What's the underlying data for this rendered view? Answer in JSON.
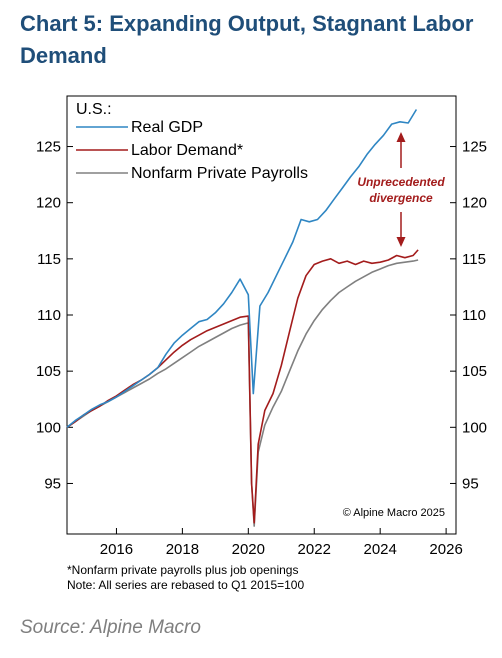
{
  "title": "Chart 5: Expanding Output, Stagnant Labor Demand",
  "notes": [
    "*Nonfarm private payrolls plus job openings",
    "Note: All series are rebased to Q1 2015=100"
  ],
  "source": "Source: Alpine Macro",
  "chart_data": {
    "type": "line",
    "region_label": "U.S.:",
    "copyright": "© Alpine Macro 2025",
    "annotation": {
      "text_lines": [
        "Unprecedented",
        "divergence"
      ],
      "color": "#a31c1c"
    },
    "xlim": [
      2014.5,
      2026.3
    ],
    "ylim": [
      90.5,
      129.5
    ],
    "x_ticks": [
      2016,
      2018,
      2020,
      2022,
      2024,
      2026
    ],
    "y_ticks": [
      95,
      100,
      105,
      110,
      115,
      120,
      125
    ],
    "legend_position": "top-left",
    "series": [
      {
        "name": "Real GDP",
        "color": "#2f86c3",
        "points": [
          [
            2014.5,
            100
          ],
          [
            2014.75,
            100.6
          ],
          [
            2015.0,
            101.1
          ],
          [
            2015.25,
            101.6
          ],
          [
            2015.5,
            102.0
          ],
          [
            2015.75,
            102.3
          ],
          [
            2016.0,
            102.7
          ],
          [
            2016.25,
            103.2
          ],
          [
            2016.5,
            103.7
          ],
          [
            2016.75,
            104.2
          ],
          [
            2017.0,
            104.7
          ],
          [
            2017.25,
            105.3
          ],
          [
            2017.5,
            106.5
          ],
          [
            2017.75,
            107.5
          ],
          [
            2018.0,
            108.2
          ],
          [
            2018.25,
            108.8
          ],
          [
            2018.5,
            109.4
          ],
          [
            2018.75,
            109.6
          ],
          [
            2019.0,
            110.2
          ],
          [
            2019.25,
            111.0
          ],
          [
            2019.5,
            112.0
          ],
          [
            2019.75,
            113.2
          ],
          [
            2020.0,
            111.8
          ],
          [
            2020.15,
            103.0
          ],
          [
            2020.35,
            110.8
          ],
          [
            2020.6,
            112.0
          ],
          [
            2020.85,
            113.5
          ],
          [
            2021.1,
            115.0
          ],
          [
            2021.35,
            116.5
          ],
          [
            2021.6,
            118.5
          ],
          [
            2021.85,
            118.3
          ],
          [
            2022.1,
            118.5
          ],
          [
            2022.35,
            119.3
          ],
          [
            2022.6,
            120.3
          ],
          [
            2022.85,
            121.3
          ],
          [
            2023.1,
            122.3
          ],
          [
            2023.35,
            123.2
          ],
          [
            2023.6,
            124.3
          ],
          [
            2023.85,
            125.2
          ],
          [
            2024.1,
            126.0
          ],
          [
            2024.35,
            127.0
          ],
          [
            2024.6,
            127.2
          ],
          [
            2024.85,
            127.1
          ],
          [
            2025.1,
            128.3
          ]
        ]
      },
      {
        "name": "Labor Demand*",
        "color": "#a31c1c",
        "points": [
          [
            2014.5,
            100
          ],
          [
            2014.75,
            100.5
          ],
          [
            2015.0,
            101.1
          ],
          [
            2015.25,
            101.5
          ],
          [
            2015.5,
            101.9
          ],
          [
            2015.75,
            102.4
          ],
          [
            2016.0,
            102.8
          ],
          [
            2016.25,
            103.3
          ],
          [
            2016.5,
            103.8
          ],
          [
            2016.75,
            104.2
          ],
          [
            2017.0,
            104.7
          ],
          [
            2017.25,
            105.3
          ],
          [
            2017.5,
            106.0
          ],
          [
            2017.75,
            106.7
          ],
          [
            2018.0,
            107.3
          ],
          [
            2018.25,
            107.8
          ],
          [
            2018.5,
            108.2
          ],
          [
            2018.75,
            108.6
          ],
          [
            2019.0,
            108.9
          ],
          [
            2019.25,
            109.2
          ],
          [
            2019.5,
            109.5
          ],
          [
            2019.75,
            109.8
          ],
          [
            2020.0,
            109.9
          ],
          [
            2020.1,
            95.0
          ],
          [
            2020.18,
            91.5
          ],
          [
            2020.3,
            98.5
          ],
          [
            2020.5,
            101.5
          ],
          [
            2020.75,
            103.0
          ],
          [
            2021.0,
            105.5
          ],
          [
            2021.25,
            108.5
          ],
          [
            2021.5,
            111.5
          ],
          [
            2021.75,
            113.5
          ],
          [
            2022.0,
            114.5
          ],
          [
            2022.25,
            114.8
          ],
          [
            2022.5,
            115.0
          ],
          [
            2022.75,
            114.6
          ],
          [
            2023.0,
            114.8
          ],
          [
            2023.25,
            114.5
          ],
          [
            2023.5,
            114.8
          ],
          [
            2023.75,
            114.6
          ],
          [
            2024.0,
            114.7
          ],
          [
            2024.25,
            114.9
          ],
          [
            2024.5,
            115.3
          ],
          [
            2024.75,
            115.1
          ],
          [
            2025.0,
            115.3
          ],
          [
            2025.15,
            115.8
          ]
        ]
      },
      {
        "name": "Nonfarm Private Payrolls",
        "color": "#808080",
        "points": [
          [
            2014.5,
            100
          ],
          [
            2014.75,
            100.5
          ],
          [
            2015.0,
            101.0
          ],
          [
            2015.25,
            101.5
          ],
          [
            2015.5,
            101.9
          ],
          [
            2015.75,
            102.3
          ],
          [
            2016.0,
            102.7
          ],
          [
            2016.25,
            103.1
          ],
          [
            2016.5,
            103.5
          ],
          [
            2016.75,
            103.9
          ],
          [
            2017.0,
            104.3
          ],
          [
            2017.25,
            104.8
          ],
          [
            2017.5,
            105.2
          ],
          [
            2017.75,
            105.7
          ],
          [
            2018.0,
            106.2
          ],
          [
            2018.25,
            106.7
          ],
          [
            2018.5,
            107.2
          ],
          [
            2018.75,
            107.6
          ],
          [
            2019.0,
            108.0
          ],
          [
            2019.25,
            108.4
          ],
          [
            2019.5,
            108.8
          ],
          [
            2019.75,
            109.1
          ],
          [
            2020.0,
            109.3
          ],
          [
            2020.1,
            95.0
          ],
          [
            2020.18,
            91.2
          ],
          [
            2020.3,
            97.8
          ],
          [
            2020.5,
            100.2
          ],
          [
            2020.75,
            101.8
          ],
          [
            2021.0,
            103.2
          ],
          [
            2021.25,
            105.0
          ],
          [
            2021.5,
            106.8
          ],
          [
            2021.75,
            108.3
          ],
          [
            2022.0,
            109.5
          ],
          [
            2022.25,
            110.5
          ],
          [
            2022.5,
            111.3
          ],
          [
            2022.75,
            112.0
          ],
          [
            2023.0,
            112.5
          ],
          [
            2023.25,
            113.0
          ],
          [
            2023.5,
            113.4
          ],
          [
            2023.75,
            113.8
          ],
          [
            2024.0,
            114.1
          ],
          [
            2024.25,
            114.4
          ],
          [
            2024.5,
            114.6
          ],
          [
            2024.75,
            114.7
          ],
          [
            2025.0,
            114.8
          ],
          [
            2025.15,
            114.9
          ]
        ]
      }
    ]
  }
}
